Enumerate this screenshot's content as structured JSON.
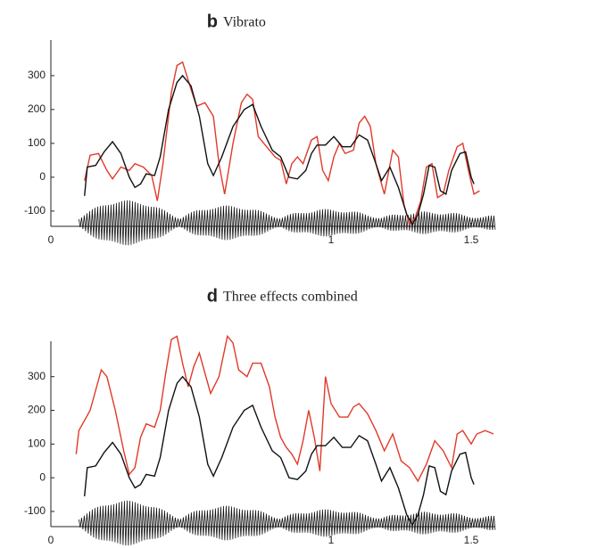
{
  "chart_data": [
    {
      "type": "line",
      "label": "b",
      "title": "Vibrato",
      "xlim": [
        0,
        1.586
      ],
      "xticks": [
        0,
        1,
        1.5
      ],
      "ylim": [
        -145,
        405
      ],
      "yticks": [
        -100,
        0,
        100,
        200,
        300
      ],
      "series": [
        {
          "color": "#e03a2a",
          "x": [
            0.12,
            0.14,
            0.17,
            0.2,
            0.22,
            0.25,
            0.28,
            0.3,
            0.33,
            0.36,
            0.38,
            0.4,
            0.43,
            0.45,
            0.47,
            0.5,
            0.52,
            0.55,
            0.58,
            0.6,
            0.62,
            0.65,
            0.68,
            0.7,
            0.72,
            0.74,
            0.77,
            0.8,
            0.82,
            0.84,
            0.86,
            0.88,
            0.9,
            0.93,
            0.95,
            0.97,
            0.99,
            1.01,
            1.03,
            1.05,
            1.08,
            1.1,
            1.12,
            1.14,
            1.16,
            1.19,
            1.22,
            1.24,
            1.26,
            1.28,
            1.3,
            1.32,
            1.34,
            1.36,
            1.38,
            1.4,
            1.42,
            1.45,
            1.47,
            1.49,
            1.51,
            1.53
          ],
          "values": [
            -10,
            65,
            70,
            20,
            -5,
            30,
            20,
            40,
            30,
            5,
            -70,
            40,
            250,
            330,
            340,
            260,
            210,
            220,
            180,
            40,
            -50,
            100,
            220,
            245,
            230,
            120,
            90,
            60,
            50,
            -20,
            40,
            60,
            40,
            110,
            120,
            20,
            -10,
            60,
            100,
            70,
            80,
            160,
            180,
            150,
            40,
            -50,
            80,
            60,
            -80,
            -140,
            -120,
            -70,
            30,
            40,
            -60,
            -50,
            20,
            90,
            100,
            20,
            -50,
            -40
          ]
        },
        {
          "color": "#111111",
          "x": [
            0.12,
            0.13,
            0.16,
            0.19,
            0.22,
            0.25,
            0.28,
            0.3,
            0.32,
            0.34,
            0.37,
            0.39,
            0.42,
            0.45,
            0.47,
            0.5,
            0.53,
            0.56,
            0.58,
            0.61,
            0.65,
            0.69,
            0.72,
            0.75,
            0.79,
            0.82,
            0.85,
            0.88,
            0.91,
            0.93,
            0.95,
            0.98,
            1.01,
            1.04,
            1.07,
            1.1,
            1.13,
            1.16,
            1.18,
            1.21,
            1.24,
            1.27,
            1.29,
            1.31,
            1.33,
            1.35,
            1.37,
            1.39,
            1.41,
            1.43,
            1.46,
            1.48,
            1.5,
            1.51
          ],
          "values": [
            -55,
            30,
            35,
            75,
            105,
            70,
            0,
            -30,
            -20,
            10,
            5,
            60,
            200,
            280,
            300,
            270,
            180,
            40,
            5,
            60,
            150,
            200,
            215,
            150,
            80,
            60,
            0,
            -5,
            20,
            70,
            95,
            95,
            120,
            90,
            90,
            125,
            110,
            40,
            -10,
            30,
            -30,
            -110,
            -140,
            -110,
            -50,
            35,
            30,
            -40,
            -50,
            20,
            70,
            75,
            0,
            -20
          ]
        }
      ]
    },
    {
      "type": "line",
      "label": "d",
      "title": "Three effects combined",
      "xlim": [
        0,
        1.586
      ],
      "xticks": [
        0,
        1,
        1.5
      ],
      "ylim": [
        -145,
        405
      ],
      "yticks": [
        -100,
        0,
        100,
        200,
        300
      ],
      "series": [
        {
          "color": "#e03a2a",
          "x": [
            0.09,
            0.1,
            0.14,
            0.18,
            0.2,
            0.23,
            0.26,
            0.28,
            0.3,
            0.32,
            0.34,
            0.37,
            0.39,
            0.41,
            0.43,
            0.45,
            0.47,
            0.49,
            0.51,
            0.53,
            0.55,
            0.57,
            0.6,
            0.63,
            0.65,
            0.67,
            0.7,
            0.72,
            0.75,
            0.78,
            0.8,
            0.82,
            0.84,
            0.86,
            0.88,
            0.9,
            0.92,
            0.94,
            0.96,
            0.98,
            1.0,
            1.03,
            1.06,
            1.08,
            1.1,
            1.13,
            1.16,
            1.19,
            1.22,
            1.25,
            1.28,
            1.31,
            1.34,
            1.37,
            1.4,
            1.43,
            1.45,
            1.47,
            1.5,
            1.52,
            1.55,
            1.58
          ],
          "values": [
            70,
            140,
            200,
            320,
            300,
            200,
            80,
            10,
            30,
            120,
            160,
            150,
            200,
            310,
            410,
            420,
            340,
            270,
            330,
            370,
            310,
            250,
            300,
            420,
            400,
            320,
            300,
            340,
            340,
            270,
            180,
            120,
            90,
            70,
            40,
            110,
            200,
            120,
            20,
            300,
            220,
            180,
            180,
            210,
            220,
            190,
            140,
            80,
            130,
            50,
            30,
            -10,
            40,
            110,
            80,
            30,
            130,
            140,
            100,
            130,
            140,
            130
          ]
        },
        {
          "color": "#111111",
          "x": [
            0.12,
            0.13,
            0.16,
            0.19,
            0.22,
            0.25,
            0.28,
            0.3,
            0.32,
            0.34,
            0.37,
            0.39,
            0.42,
            0.45,
            0.47,
            0.5,
            0.53,
            0.56,
            0.58,
            0.61,
            0.65,
            0.69,
            0.72,
            0.75,
            0.79,
            0.82,
            0.85,
            0.88,
            0.91,
            0.93,
            0.95,
            0.98,
            1.01,
            1.04,
            1.07,
            1.1,
            1.13,
            1.16,
            1.18,
            1.21,
            1.24,
            1.27,
            1.29,
            1.31,
            1.33,
            1.35,
            1.37,
            1.39,
            1.41,
            1.43,
            1.46,
            1.48,
            1.5,
            1.51
          ],
          "values": [
            -55,
            30,
            35,
            75,
            105,
            70,
            0,
            -30,
            -20,
            10,
            5,
            60,
            200,
            280,
            300,
            270,
            180,
            40,
            5,
            60,
            150,
            200,
            215,
            150,
            80,
            60,
            0,
            -5,
            20,
            70,
            95,
            95,
            120,
            90,
            90,
            125,
            110,
            40,
            -10,
            30,
            -30,
            -110,
            -140,
            -110,
            -50,
            35,
            30,
            -40,
            -50,
            20,
            70,
            75,
            0,
            -20
          ]
        }
      ]
    }
  ]
}
